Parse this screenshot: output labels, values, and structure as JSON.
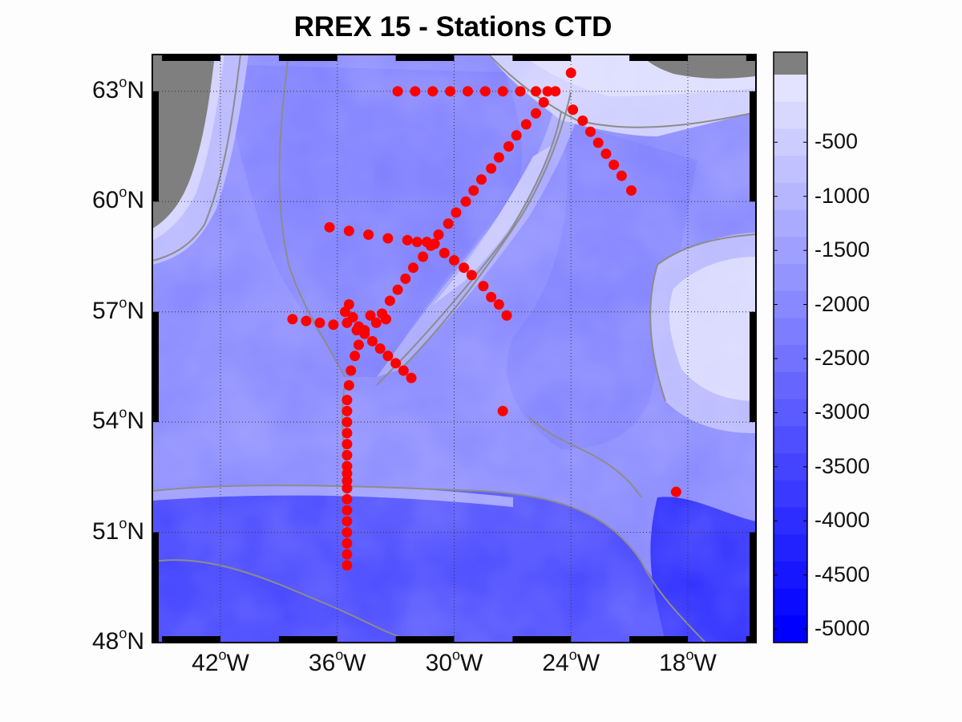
{
  "title": "RREX 15 - Stations CTD",
  "map": {
    "lon_range": [
      -45.5,
      -14.5
    ],
    "lat_range": [
      48,
      64
    ],
    "land_color": "#7f7f7f",
    "ocean_deep_color": "#0000ff",
    "ocean_shallow_color": "#e3e3ff",
    "contour_color": "#8c8c8c",
    "station_color": "#ff0000",
    "grid": "dotted"
  },
  "y_axis": {
    "ticks": [
      {
        "lat": 63,
        "deg": "63",
        "hemi": "N"
      },
      {
        "lat": 60,
        "deg": "60",
        "hemi": "N"
      },
      {
        "lat": 57,
        "deg": "57",
        "hemi": "N"
      },
      {
        "lat": 54,
        "deg": "54",
        "hemi": "N"
      },
      {
        "lat": 51,
        "deg": "51",
        "hemi": "N"
      },
      {
        "lat": 48,
        "deg": "48",
        "hemi": "N"
      }
    ]
  },
  "x_axis": {
    "ticks": [
      {
        "lon": -42,
        "deg": "42",
        "hemi": "W"
      },
      {
        "lon": -36,
        "deg": "36",
        "hemi": "W"
      },
      {
        "lon": -30,
        "deg": "30",
        "hemi": "W"
      },
      {
        "lon": -24,
        "deg": "24",
        "hemi": "W"
      },
      {
        "lon": -18,
        "deg": "18",
        "hemi": "W"
      }
    ]
  },
  "colorbar": {
    "range": [
      -5000,
      0
    ],
    "labels": [
      "-500",
      "-1000",
      "-1500",
      "-2000",
      "-2500",
      "-3000",
      "-3500",
      "-4000",
      "-4500",
      "-5000"
    ],
    "label_values": [
      -500,
      -1000,
      -1500,
      -2000,
      -2500,
      -3000,
      -3500,
      -4000,
      -4500,
      -5000
    ],
    "land_color": "#7f7f7f",
    "top_color": "#e3e3ff",
    "bottom_color": "#0000ff",
    "levels": 21
  },
  "chart_data": {
    "type": "scatter",
    "title": "RREX 15 - Stations CTD",
    "xlabel": "",
    "ylabel": "",
    "xlim": [
      -45.5,
      -14.5
    ],
    "ylim": [
      48,
      64
    ],
    "points": [
      [
        -32.9,
        63.0
      ],
      [
        -32.0,
        63.0
      ],
      [
        -31.1,
        63.0
      ],
      [
        -30.2,
        63.0
      ],
      [
        -29.3,
        63.0
      ],
      [
        -28.4,
        63.0
      ],
      [
        -27.5,
        63.0
      ],
      [
        -26.6,
        63.0
      ],
      [
        -25.8,
        63.0
      ],
      [
        -25.2,
        63.0
      ],
      [
        -24.8,
        63.0
      ],
      [
        -24.0,
        63.5
      ],
      [
        -23.9,
        62.5
      ],
      [
        -23.4,
        62.2
      ],
      [
        -23.0,
        61.9
      ],
      [
        -22.6,
        61.6
      ],
      [
        -22.2,
        61.3
      ],
      [
        -21.8,
        61.0
      ],
      [
        -21.4,
        60.7
      ],
      [
        -20.9,
        60.3
      ],
      [
        -25.4,
        62.7
      ],
      [
        -25.8,
        62.4
      ],
      [
        -26.3,
        62.1
      ],
      [
        -26.8,
        61.8
      ],
      [
        -27.2,
        61.5
      ],
      [
        -27.7,
        61.2
      ],
      [
        -28.1,
        60.9
      ],
      [
        -28.6,
        60.6
      ],
      [
        -29.0,
        60.3
      ],
      [
        -29.4,
        60.0
      ],
      [
        -29.9,
        59.7
      ],
      [
        -30.3,
        59.4
      ],
      [
        -30.8,
        59.1
      ],
      [
        -31.2,
        58.8
      ],
      [
        -31.6,
        58.5
      ],
      [
        -32.1,
        58.2
      ],
      [
        -32.5,
        57.9
      ],
      [
        -32.9,
        57.6
      ],
      [
        -33.3,
        57.3
      ],
      [
        -36.4,
        59.3
      ],
      [
        -35.4,
        59.2
      ],
      [
        -34.4,
        59.1
      ],
      [
        -33.4,
        59.0
      ],
      [
        -32.4,
        58.95
      ],
      [
        -31.9,
        58.9
      ],
      [
        -31.4,
        58.9
      ],
      [
        -31.0,
        58.85
      ],
      [
        -30.5,
        58.6
      ],
      [
        -30.0,
        58.4
      ],
      [
        -29.5,
        58.2
      ],
      [
        -29.1,
        58.0
      ],
      [
        -28.5,
        57.7
      ],
      [
        -28.1,
        57.4
      ],
      [
        -27.7,
        57.2
      ],
      [
        -27.3,
        56.9
      ],
      [
        -38.3,
        56.8
      ],
      [
        -37.6,
        56.75
      ],
      [
        -36.9,
        56.7
      ],
      [
        -36.2,
        56.65
      ],
      [
        -35.5,
        56.7
      ],
      [
        -35.2,
        56.85
      ],
      [
        -34.9,
        56.6
      ],
      [
        -34.6,
        56.5
      ],
      [
        -34.3,
        56.9
      ],
      [
        -34.0,
        56.7
      ],
      [
        -33.7,
        56.95
      ],
      [
        -33.5,
        56.8
      ],
      [
        -35.6,
        57.0
      ],
      [
        -35.4,
        57.2
      ],
      [
        -35.0,
        56.5
      ],
      [
        -34.6,
        56.4
      ],
      [
        -34.2,
        56.2
      ],
      [
        -33.8,
        56.0
      ],
      [
        -33.4,
        55.8
      ],
      [
        -33.0,
        55.6
      ],
      [
        -32.6,
        55.4
      ],
      [
        -32.2,
        55.2
      ],
      [
        -34.9,
        56.1
      ],
      [
        -35.1,
        55.8
      ],
      [
        -35.3,
        55.4
      ],
      [
        -35.4,
        55.0
      ],
      [
        -35.5,
        54.6
      ],
      [
        -35.5,
        54.3
      ],
      [
        -35.5,
        54.0
      ],
      [
        -35.5,
        53.7
      ],
      [
        -35.5,
        53.4
      ],
      [
        -35.5,
        53.1
      ],
      [
        -35.5,
        52.8
      ],
      [
        -35.5,
        52.6
      ],
      [
        -35.5,
        52.4
      ],
      [
        -35.5,
        52.2
      ],
      [
        -35.5,
        51.9
      ],
      [
        -35.5,
        51.6
      ],
      [
        -35.5,
        51.3
      ],
      [
        -35.5,
        51.0
      ],
      [
        -35.5,
        50.7
      ],
      [
        -35.5,
        50.4
      ],
      [
        -35.5,
        50.1
      ],
      [
        -27.5,
        54.3
      ],
      [
        -18.6,
        52.1
      ]
    ]
  }
}
